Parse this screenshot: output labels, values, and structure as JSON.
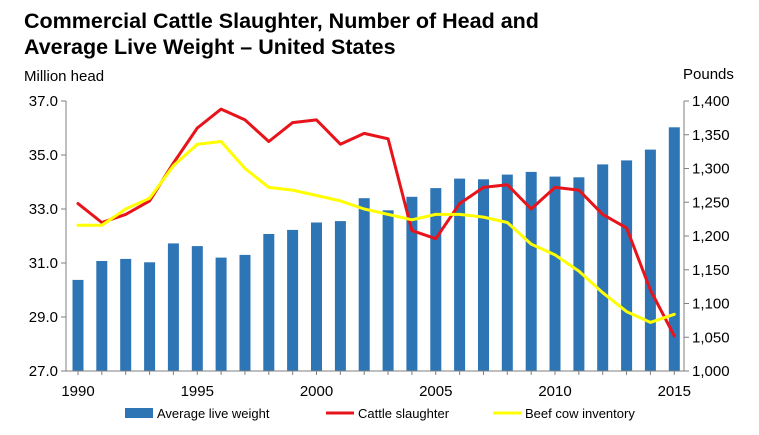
{
  "chart_data": {
    "type": "bar+line",
    "title_line1": "Commercial Cattle Slaughter, Number of Head and",
    "title_line2": "Average Live Weight – United States",
    "ylabel_left": "Million head",
    "ylabel_right": "Pounds",
    "x": [
      1990,
      1991,
      1992,
      1993,
      1994,
      1995,
      1996,
      1997,
      1998,
      1999,
      2000,
      2001,
      2002,
      2003,
      2004,
      2005,
      2006,
      2007,
      2008,
      2009,
      2010,
      2011,
      2012,
      2013,
      2014,
      2015
    ],
    "ylim_left": [
      27.0,
      37.0
    ],
    "yticks_left": [
      "27.0",
      "29.0",
      "31.0",
      "33.0",
      "35.0",
      "37.0"
    ],
    "ylim_right": [
      1000,
      1400
    ],
    "yticks_right": [
      "1,000",
      "1,050",
      "1,100",
      "1,150",
      "1,200",
      "1,250",
      "1,300",
      "1,350",
      "1,400"
    ],
    "xticks": [
      "1990",
      "1995",
      "2000",
      "2005",
      "2010",
      "2015"
    ],
    "series": [
      {
        "name": "Average live weight",
        "kind": "bar",
        "axis": "right",
        "color": "#2e75b6",
        "values": [
          1135,
          1163,
          1166,
          1161,
          1189,
          1185,
          1168,
          1172,
          1203,
          1209,
          1220,
          1222,
          1256,
          1238,
          1258,
          1271,
          1285,
          1284,
          1291,
          1295,
          1288,
          1287,
          1306,
          1312,
          1328,
          1361
        ]
      },
      {
        "name": "Cattle slaughter",
        "kind": "line",
        "axis": "left",
        "color": "#e8141b",
        "values": [
          33.2,
          32.5,
          32.8,
          33.3,
          34.7,
          36.0,
          36.7,
          36.3,
          35.5,
          36.2,
          36.3,
          35.4,
          35.8,
          35.6,
          32.2,
          31.9,
          33.2,
          33.8,
          33.9,
          33.0,
          33.8,
          33.7,
          32.8,
          32.3,
          30.0,
          28.3
        ]
      },
      {
        "name": "Beef cow inventory",
        "kind": "line",
        "axis": "left",
        "color": "#ffff00",
        "values": [
          32.4,
          32.4,
          33.0,
          33.4,
          34.6,
          35.4,
          35.5,
          34.5,
          33.8,
          33.7,
          33.5,
          33.3,
          33.0,
          32.8,
          32.6,
          32.8,
          32.8,
          32.7,
          32.5,
          31.7,
          31.3,
          30.7,
          29.9,
          29.2,
          28.8,
          29.1
        ]
      }
    ],
    "legend_position": "bottom",
    "grid": false
  }
}
